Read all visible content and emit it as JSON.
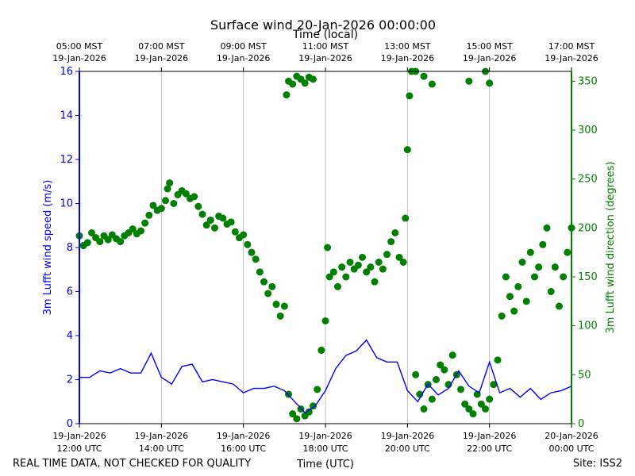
{
  "chart_data": {
    "type": "line+scatter",
    "title": "Surface wind 20-Jan-2026 00:00:00",
    "top_axis_title": "Time (local)",
    "xlabel": "Time (UTC)",
    "ylabel_left": "3m Lufft wind speed (m/s)",
    "ylabel_right": "3m Lufft wind direction (degrees)",
    "xlim_hours_utc": [
      12,
      24
    ],
    "ylim_left": [
      0,
      16
    ],
    "ylim_right": [
      0,
      360
    ],
    "grid": "vertical at major ticks",
    "left_ticks": [
      "0",
      "2",
      "4",
      "6",
      "8",
      "10",
      "12",
      "14",
      "16"
    ],
    "right_ticks": [
      "0",
      "50",
      "100",
      "150",
      "200",
      "250",
      "300",
      "350"
    ],
    "x_ticks_bottom": [
      {
        "hour": 12,
        "line1": "19-Jan-2026",
        "line2": "12:00 UTC"
      },
      {
        "hour": 14,
        "line1": "19-Jan-2026",
        "line2": "14:00 UTC"
      },
      {
        "hour": 16,
        "line1": "19-Jan-2026",
        "line2": "16:00 UTC"
      },
      {
        "hour": 18,
        "line1": "19-Jan-2026",
        "line2": "18:00 UTC"
      },
      {
        "hour": 20,
        "line1": "19-Jan-2026",
        "line2": "20:00 UTC"
      },
      {
        "hour": 22,
        "line1": "19-Jan-2026",
        "line2": "22:00 UTC"
      },
      {
        "hour": 24,
        "line1": "20-Jan-2026",
        "line2": "00:00 UTC"
      }
    ],
    "x_ticks_top": [
      {
        "hour": 12,
        "line1": "05:00 MST",
        "line2": "19-Jan-2026"
      },
      {
        "hour": 14,
        "line1": "07:00 MST",
        "line2": "19-Jan-2026"
      },
      {
        "hour": 16,
        "line1": "09:00 MST",
        "line2": "19-Jan-2026"
      },
      {
        "hour": 18,
        "line1": "11:00 MST",
        "line2": "19-Jan-2026"
      },
      {
        "hour": 20,
        "line1": "13:00 MST",
        "line2": "19-Jan-2026"
      },
      {
        "hour": 22,
        "line1": "15:00 MST",
        "line2": "19-Jan-2026"
      },
      {
        "hour": 24,
        "line1": "17:00 MST",
        "line2": "19-Jan-2026"
      }
    ],
    "series": [
      {
        "name": "3m Lufft wind speed",
        "kind": "line",
        "axis": "left",
        "color": "#0000ff",
        "x_hours": [
          12.0,
          12.25,
          12.5,
          12.75,
          13.0,
          13.25,
          13.5,
          13.75,
          14.0,
          14.25,
          14.5,
          14.75,
          15.0,
          15.25,
          15.5,
          15.75,
          16.0,
          16.25,
          16.5,
          16.75,
          17.0,
          17.25,
          17.5,
          17.75,
          18.0,
          18.25,
          18.5,
          18.75,
          19.0,
          19.25,
          19.5,
          19.75,
          20.0,
          20.25,
          20.5,
          20.75,
          21.0,
          21.25,
          21.5,
          21.75,
          22.0,
          22.25,
          22.5,
          22.75,
          23.0,
          23.25,
          23.5,
          23.75,
          24.0
        ],
        "values": [
          2.1,
          2.1,
          2.4,
          2.3,
          2.5,
          2.3,
          2.3,
          3.2,
          2.1,
          1.8,
          2.6,
          2.7,
          1.9,
          2.0,
          1.9,
          1.8,
          1.4,
          1.6,
          1.6,
          1.7,
          1.5,
          1.0,
          0.5,
          0.8,
          1.5,
          2.5,
          3.1,
          3.3,
          3.8,
          3.0,
          2.8,
          2.8,
          1.5,
          1.0,
          1.8,
          1.3,
          1.6,
          2.4,
          1.7,
          1.4,
          2.8,
          1.4,
          1.6,
          1.2,
          1.6,
          1.1,
          1.4,
          1.5,
          1.7
        ]
      },
      {
        "name": "3m Lufft wind direction",
        "kind": "scatter",
        "axis": "right",
        "color": "#008000",
        "points": [
          [
            12.0,
            192
          ],
          [
            12.1,
            182
          ],
          [
            12.2,
            185
          ],
          [
            12.3,
            195
          ],
          [
            12.4,
            190
          ],
          [
            12.5,
            186
          ],
          [
            12.6,
            192
          ],
          [
            12.7,
            188
          ],
          [
            12.8,
            193
          ],
          [
            12.9,
            189
          ],
          [
            13.0,
            186
          ],
          [
            13.1,
            192
          ],
          [
            13.2,
            195
          ],
          [
            13.3,
            199
          ],
          [
            13.4,
            194
          ],
          [
            13.5,
            197
          ],
          [
            13.6,
            205
          ],
          [
            13.7,
            213
          ],
          [
            13.8,
            223
          ],
          [
            13.9,
            218
          ],
          [
            14.0,
            220
          ],
          [
            14.1,
            228
          ],
          [
            14.15,
            240
          ],
          [
            14.2,
            246
          ],
          [
            14.3,
            225
          ],
          [
            14.4,
            234
          ],
          [
            14.5,
            238
          ],
          [
            14.6,
            235
          ],
          [
            14.7,
            230
          ],
          [
            14.8,
            232
          ],
          [
            14.9,
            222
          ],
          [
            15.0,
            214
          ],
          [
            15.1,
            203
          ],
          [
            15.2,
            208
          ],
          [
            15.3,
            200
          ],
          [
            15.4,
            212
          ],
          [
            15.5,
            210
          ],
          [
            15.6,
            204
          ],
          [
            15.7,
            206
          ],
          [
            15.8,
            196
          ],
          [
            15.9,
            190
          ],
          [
            16.0,
            193
          ],
          [
            16.1,
            183
          ],
          [
            16.2,
            175
          ],
          [
            16.3,
            168
          ],
          [
            16.4,
            155
          ],
          [
            16.5,
            145
          ],
          [
            16.6,
            133
          ],
          [
            16.7,
            140
          ],
          [
            16.8,
            122
          ],
          [
            16.9,
            110
          ],
          [
            17.0,
            120
          ],
          [
            17.05,
            336
          ],
          [
            17.1,
            350
          ],
          [
            17.2,
            347
          ],
          [
            17.3,
            355
          ],
          [
            17.4,
            352
          ],
          [
            17.5,
            348
          ],
          [
            17.6,
            354
          ],
          [
            17.7,
            352
          ],
          [
            17.1,
            30
          ],
          [
            17.2,
            10
          ],
          [
            17.3,
            5
          ],
          [
            17.4,
            15
          ],
          [
            17.5,
            8
          ],
          [
            17.6,
            12
          ],
          [
            17.7,
            18
          ],
          [
            17.8,
            35
          ],
          [
            17.9,
            75
          ],
          [
            18.0,
            105
          ],
          [
            18.05,
            180
          ],
          [
            18.1,
            150
          ],
          [
            18.2,
            155
          ],
          [
            18.3,
            140
          ],
          [
            18.4,
            160
          ],
          [
            18.5,
            150
          ],
          [
            18.6,
            165
          ],
          [
            18.7,
            158
          ],
          [
            18.8,
            162
          ],
          [
            18.9,
            170
          ],
          [
            19.0,
            155
          ],
          [
            19.1,
            160
          ],
          [
            19.2,
            145
          ],
          [
            19.3,
            165
          ],
          [
            19.4,
            158
          ],
          [
            19.5,
            173
          ],
          [
            19.6,
            186
          ],
          [
            19.7,
            195
          ],
          [
            19.8,
            170
          ],
          [
            19.9,
            165
          ],
          [
            19.95,
            210
          ],
          [
            20.0,
            280
          ],
          [
            20.05,
            335
          ],
          [
            20.1,
            360
          ],
          [
            20.2,
            50
          ],
          [
            20.3,
            30
          ],
          [
            20.4,
            15
          ],
          [
            20.5,
            40
          ],
          [
            20.6,
            25
          ],
          [
            20.7,
            45
          ],
          [
            20.8,
            60
          ],
          [
            20.9,
            55
          ],
          [
            21.0,
            40
          ],
          [
            21.1,
            70
          ],
          [
            21.2,
            50
          ],
          [
            21.3,
            35
          ],
          [
            21.4,
            20
          ],
          [
            21.5,
            15
          ],
          [
            21.6,
            10
          ],
          [
            21.7,
            30
          ],
          [
            21.8,
            20
          ],
          [
            21.9,
            15
          ],
          [
            22.0,
            25
          ],
          [
            22.1,
            40
          ],
          [
            22.2,
            65
          ],
          [
            22.3,
            110
          ],
          [
            22.4,
            150
          ],
          [
            22.5,
            130
          ],
          [
            22.6,
            115
          ],
          [
            22.7,
            140
          ],
          [
            22.8,
            165
          ],
          [
            22.9,
            125
          ],
          [
            23.0,
            175
          ],
          [
            23.1,
            150
          ],
          [
            23.2,
            160
          ],
          [
            23.3,
            183
          ],
          [
            23.4,
            200
          ],
          [
            23.5,
            135
          ],
          [
            23.6,
            160
          ],
          [
            23.7,
            120
          ],
          [
            23.8,
            150
          ],
          [
            23.9,
            175
          ],
          [
            24.0,
            200
          ],
          [
            20.2,
            360
          ],
          [
            20.4,
            355
          ],
          [
            20.6,
            347
          ],
          [
            21.5,
            350
          ],
          [
            22.0,
            348
          ],
          [
            21.9,
            360
          ]
        ]
      }
    ],
    "footer_left": "REAL TIME DATA, NOT CHECKED FOR QUALITY",
    "footer_right": "Site: ISS2"
  }
}
